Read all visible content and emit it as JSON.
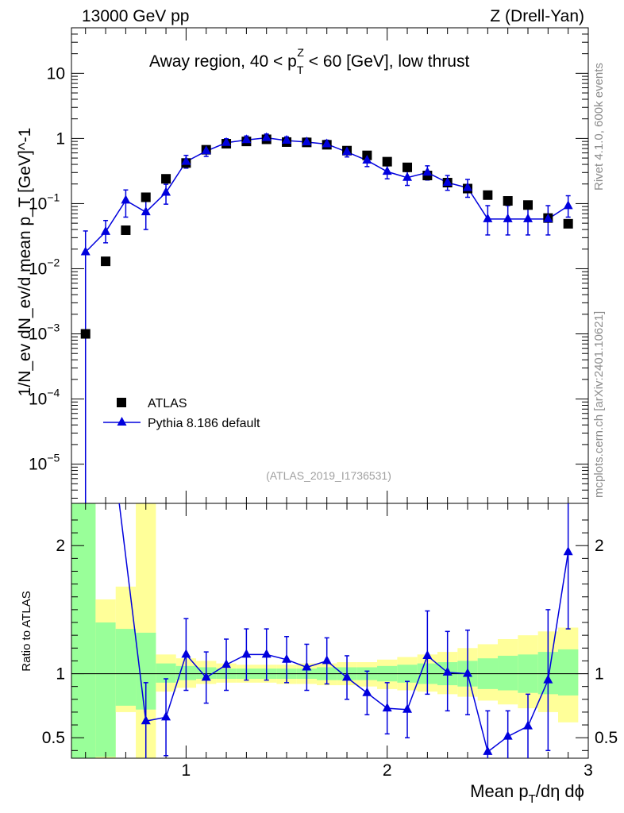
{
  "header": {
    "left": "13000 GeV pp",
    "right": "Z (Drell-Yan)",
    "subtitle_pre": "Away region, 40 < p",
    "subtitle_sub": "T",
    "subtitle_sup": "Z",
    "subtitle_post": " < 60 [GeV], low thrust"
  },
  "side_labels": {
    "rivet": "Rivet 4.1.0,  600k events",
    "mcplots": "mcplots.cern.ch [arXiv:2401.10621]"
  },
  "chart_data": [
    {
      "type": "scatter",
      "panel": "main",
      "yscale": "log",
      "ylabel": "1/N_ev dN_ev/d mean p_T [GeV]^-1",
      "ylim": [
        2.5e-06,
        50
      ],
      "xlim": [
        0.43,
        3.0
      ],
      "watermark": "(ATLAS_2019_I1736531)",
      "y_ticks": [
        {
          "v": 1e-05,
          "base": "10",
          "exp": "−5"
        },
        {
          "v": 0.0001,
          "base": "10",
          "exp": "−4"
        },
        {
          "v": 0.001,
          "base": "10",
          "exp": "−3"
        },
        {
          "v": 0.01,
          "base": "10",
          "exp": "−2"
        },
        {
          "v": 0.1,
          "base": "10",
          "exp": "−1"
        },
        {
          "v": 1,
          "base": "1",
          "exp": ""
        },
        {
          "v": 10,
          "base": "10",
          "exp": ""
        }
      ],
      "legend": {
        "position": "bottom-left",
        "entries": [
          "ATLAS",
          "Pythia 8.186 default"
        ]
      },
      "series": [
        {
          "name": "ATLAS",
          "marker": "square",
          "color": "#000000",
          "x": [
            0.5,
            0.6,
            0.7,
            0.8,
            0.9,
            1.0,
            1.1,
            1.2,
            1.3,
            1.4,
            1.5,
            1.6,
            1.7,
            1.8,
            1.9,
            2.0,
            2.1,
            2.2,
            2.3,
            2.4,
            2.5,
            2.6,
            2.7,
            2.8,
            2.9
          ],
          "y": [
            0.001,
            0.013,
            0.039,
            0.125,
            0.24,
            0.42,
            0.67,
            0.83,
            0.9,
            0.97,
            0.88,
            0.87,
            0.8,
            0.65,
            0.55,
            0.44,
            0.36,
            0.27,
            0.21,
            0.17,
            0.135,
            0.11,
            0.095,
            0.06,
            0.049
          ]
        },
        {
          "name": "Pythia 8.186 default",
          "marker": "triangle",
          "color": "#0000dd",
          "x": [
            0.5,
            0.6,
            0.7,
            0.8,
            0.9,
            1.0,
            1.1,
            1.2,
            1.3,
            1.4,
            1.5,
            1.6,
            1.7,
            1.8,
            1.9,
            2.0,
            2.1,
            2.2,
            2.3,
            2.4,
            2.5,
            2.6,
            2.7,
            2.8,
            2.9
          ],
          "y": [
            0.018,
            0.037,
            0.112,
            0.074,
            0.148,
            0.44,
            0.64,
            0.86,
            0.95,
            1.02,
            0.93,
            0.88,
            0.82,
            0.62,
            0.46,
            0.31,
            0.25,
            0.3,
            0.21,
            0.175,
            0.058,
            0.058,
            0.058,
            0.058,
            0.092
          ],
          "err_lo": [
            0.018,
            0.012,
            0.05,
            0.034,
            0.05,
            0.09,
            0.11,
            0.12,
            0.12,
            0.13,
            0.12,
            0.12,
            0.11,
            0.1,
            0.09,
            0.07,
            0.06,
            0.07,
            0.05,
            0.05,
            0.025,
            0.025,
            0.025,
            0.025,
            0.03
          ],
          "err_hi": [
            0.02,
            0.018,
            0.05,
            0.034,
            0.05,
            0.11,
            0.12,
            0.13,
            0.14,
            0.15,
            0.13,
            0.13,
            0.12,
            0.1,
            0.09,
            0.07,
            0.06,
            0.08,
            0.06,
            0.06,
            0.035,
            0.035,
            0.035,
            0.035,
            0.04
          ]
        }
      ]
    },
    {
      "type": "line",
      "panel": "ratio",
      "ylabel": "Ratio to ATLAS",
      "ylim": [
        0.34,
        2.33
      ],
      "xlim": [
        0.43,
        3.0
      ],
      "xlabel_pre": "Mean p",
      "xlabel_sub": "T",
      "xlabel_post": "/dη dϕ",
      "x_ticks": [
        1,
        2,
        3
      ],
      "x_tick_labels": [
        "1",
        "2",
        "3"
      ],
      "y_ticks": [
        0.5,
        1,
        2
      ],
      "y_tick_labels": [
        "0.5",
        "1",
        "2"
      ],
      "bands": {
        "edges": [
          0.43,
          0.55,
          0.65,
          0.75,
          0.85,
          0.95,
          1.05,
          1.15,
          1.25,
          1.35,
          1.45,
          1.55,
          1.65,
          1.75,
          1.85,
          1.95,
          2.05,
          2.15,
          2.25,
          2.35,
          2.45,
          2.55,
          2.65,
          2.75,
          2.85,
          2.95
        ],
        "yellow_lo": [
          0.3,
          0.3,
          0.7,
          0.3,
          0.86,
          0.89,
          0.92,
          0.93,
          0.93,
          0.93,
          0.92,
          0.92,
          0.91,
          0.91,
          0.9,
          0.88,
          0.87,
          0.86,
          0.84,
          0.82,
          0.79,
          0.76,
          0.73,
          0.7,
          0.62
        ],
        "yellow_hi": [
          2.4,
          1.58,
          1.68,
          2.4,
          1.15,
          1.12,
          1.1,
          1.08,
          1.07,
          1.07,
          1.07,
          1.08,
          1.08,
          1.09,
          1.09,
          1.11,
          1.13,
          1.15,
          1.17,
          1.2,
          1.23,
          1.27,
          1.3,
          1.33,
          1.36
        ],
        "green_lo": [
          0.3,
          0.35,
          0.75,
          0.72,
          0.93,
          0.95,
          0.96,
          0.96,
          0.96,
          0.96,
          0.96,
          0.96,
          0.95,
          0.95,
          0.95,
          0.94,
          0.93,
          0.92,
          0.91,
          0.9,
          0.88,
          0.87,
          0.85,
          0.84,
          0.83
        ],
        "green_hi": [
          2.4,
          1.4,
          1.35,
          1.32,
          1.08,
          1.06,
          1.05,
          1.04,
          1.04,
          1.04,
          1.04,
          1.04,
          1.05,
          1.05,
          1.05,
          1.06,
          1.07,
          1.08,
          1.09,
          1.1,
          1.12,
          1.14,
          1.15,
          1.17,
          1.19
        ]
      },
      "series": [
        {
          "name": "Pythia 8.186 default / ATLAS",
          "color": "#0000dd",
          "x": [
            0.8,
            0.9,
            1.0,
            1.1,
            1.2,
            1.3,
            1.4,
            1.5,
            1.6,
            1.7,
            1.8,
            1.9,
            2.0,
            2.1,
            2.2,
            2.3,
            2.4,
            2.5,
            2.6,
            2.7,
            2.8,
            2.9
          ],
          "y": [
            0.63,
            0.66,
            1.15,
            0.97,
            1.07,
            1.15,
            1.15,
            1.11,
            1.05,
            1.1,
            0.97,
            0.85,
            0.73,
            0.72,
            1.14,
            1.01,
            1.0,
            0.39,
            0.51,
            0.59,
            0.95,
            1.95
          ],
          "err_lo": [
            0.3,
            0.3,
            0.28,
            0.2,
            0.2,
            0.2,
            0.2,
            0.18,
            0.18,
            0.18,
            0.17,
            0.17,
            0.2,
            0.22,
            0.3,
            0.3,
            0.32,
            0.39,
            0.2,
            0.25,
            0.55,
            0.6
          ],
          "err_hi": [
            0.3,
            0.3,
            0.28,
            0.2,
            0.2,
            0.2,
            0.2,
            0.18,
            0.18,
            0.18,
            0.17,
            0.17,
            0.2,
            0.22,
            0.35,
            0.32,
            0.34,
            0.32,
            0.2,
            0.25,
            0.55,
            0.6
          ]
        }
      ],
      "offscale_line": {
        "x0": 0.6,
        "y0": 3.2,
        "x1": 0.8,
        "y1": 0.63
      }
    }
  ]
}
